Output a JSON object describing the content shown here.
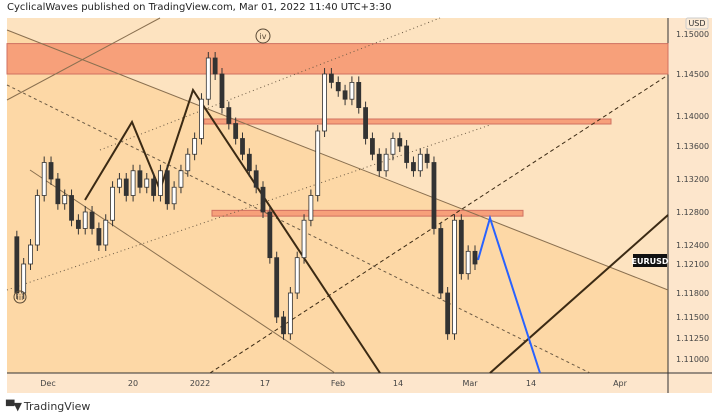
{
  "header": {
    "text": "CyclicalWaves published on TradingView.com, Mar 01, 2022 11:40 UTC+3:30"
  },
  "footer": {
    "brand": "TradingView",
    "logo": "TV"
  },
  "chart_data": {
    "type": "candlestick",
    "symbol": "EURUSD",
    "currency": "USD",
    "y_ticks": [
      "1.15000",
      "1.14500",
      "1.14000",
      "1.13600",
      "1.13200",
      "1.12800",
      "1.12400",
      "1.12100",
      "1.11800",
      "1.11500",
      "1.11250",
      "1.11000"
    ],
    "y_tick_values": [
      1.15,
      1.145,
      1.14,
      1.136,
      1.132,
      1.128,
      1.124,
      1.121,
      1.118,
      1.115,
      1.1125,
      1.11
    ],
    "x_ticks": [
      "Dec",
      "20",
      "2022",
      "17",
      "Feb",
      "14",
      "Mar",
      "14",
      "Apr"
    ],
    "closes": [
      1.125,
      1.118,
      1.121,
      1.124,
      1.13,
      1.134,
      1.132,
      1.129,
      1.13,
      1.127,
      1.126,
      1.128,
      1.126,
      1.124,
      1.127,
      1.131,
      1.132,
      1.13,
      1.133,
      1.131,
      1.132,
      1.13,
      1.133,
      1.129,
      1.131,
      1.133,
      1.135,
      1.137,
      1.142,
      1.147,
      1.145,
      1.141,
      1.139,
      1.137,
      1.135,
      1.133,
      1.131,
      1.128,
      1.122,
      1.115,
      1.113,
      1.118,
      1.122,
      1.127,
      1.13,
      1.138,
      1.145,
      1.144,
      1.143,
      1.142,
      1.144,
      1.141,
      1.137,
      1.135,
      1.133,
      1.135,
      1.137,
      1.136,
      1.134,
      1.133,
      1.135,
      1.134,
      1.126,
      1.118,
      1.113,
      1.127,
      1.12,
      1.123,
      1.121
    ],
    "zones": [
      {
        "top": 1.1488,
        "bottom": 1.145
      },
      {
        "top": 1.1396,
        "bottom": 1.139
      },
      {
        "top": 1.1282,
        "bottom": 1.1275
      }
    ],
    "wave_labels": [
      "iii",
      "iv"
    ],
    "colors": {
      "bull": "#2e2e2e",
      "zone": "#f7a07a",
      "projection": "#2962ff",
      "wave": "#3b2a14"
    }
  }
}
